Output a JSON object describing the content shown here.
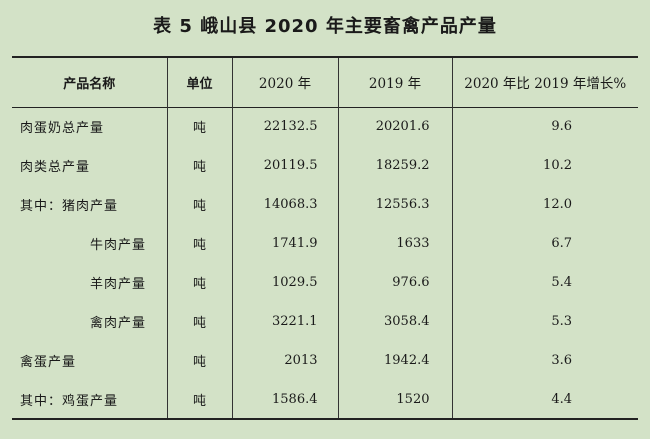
{
  "title": "表 5    峨山县 2020 年主要畜禽产品产量",
  "headers": {
    "product": "产品名称",
    "unit": "单位",
    "y2020": "2020 年",
    "y2019": "2019 年",
    "growth": "2020 年比 2019 年增长%"
  },
  "rows": [
    {
      "name": "肉蛋奶总产量",
      "unit": "吨",
      "v2020": "22132.5",
      "v2019": "20201.6",
      "growth": "9.6"
    },
    {
      "name": "肉类总产量",
      "unit": "吨",
      "v2020": "20119.5",
      "v2019": "18259.2",
      "growth": "10.2"
    },
    {
      "name": "其中：猪肉产量",
      "unit": "吨",
      "v2020": "14068.3",
      "v2019": "12556.3",
      "growth": "12.0"
    },
    {
      "name": "牛肉产量",
      "unit": "吨",
      "v2020": "1741.9",
      "v2019": "1633",
      "growth": "6.7"
    },
    {
      "name": "羊肉产量",
      "unit": "吨",
      "v2020": "1029.5",
      "v2019": "976.6",
      "growth": "5.4"
    },
    {
      "name": "禽肉产量",
      "unit": "吨",
      "v2020": "3221.1",
      "v2019": "3058.4",
      "growth": "5.3"
    },
    {
      "name": "禽蛋产量",
      "unit": "吨",
      "v2020": "2013",
      "v2019": "1942.4",
      "growth": "3.6"
    },
    {
      "name": "其中：鸡蛋产量",
      "unit": "吨",
      "v2020": "1586.4",
      "v2019": "1520",
      "growth": "4.4"
    }
  ]
}
